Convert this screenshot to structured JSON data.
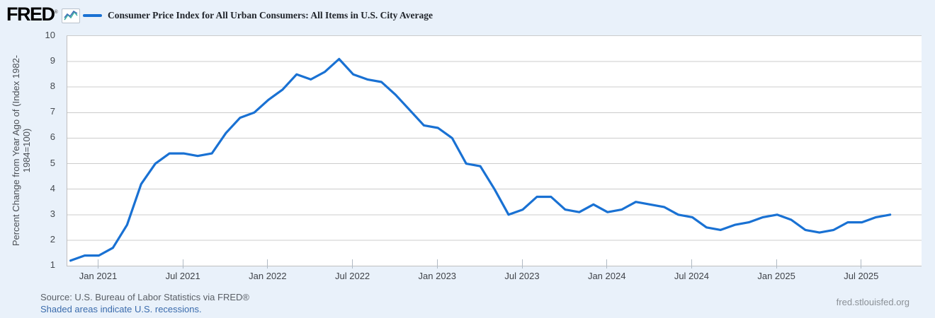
{
  "header": {
    "logo_text": "FRED",
    "registered_mark": "®",
    "series_title": "Consumer Price Index for All Urban Consumers: All Items in U.S. City Average"
  },
  "colors": {
    "series_line": "#1971d3",
    "background": "#e9f1fa",
    "plot_background": "#ffffff",
    "gridline": "#cccccc",
    "axis_line": "#bfbfbf",
    "link_blue": "#3a6bac",
    "icon_blue": "#4273b8",
    "icon_teal": "#3eb1a1"
  },
  "y_axis": {
    "title_line1": "Percent Change from Year Ago of (Index 1982-",
    "title_line2": "1984=100)",
    "tick_labels": [
      "1",
      "2",
      "3",
      "4",
      "5",
      "6",
      "7",
      "8",
      "9",
      "10"
    ]
  },
  "x_axis": {
    "tick_labels": [
      "Jan 2021",
      "Jul 2021",
      "Jan 2022",
      "Jul 2022",
      "Jan 2023",
      "Jul 2023",
      "Jan 2024",
      "Jul 2024",
      "Jan 2025",
      "Jul 2025"
    ]
  },
  "footer": {
    "source": "Source: U.S. Bureau of Labor Statistics via FRED®",
    "recession_note": "Shaded areas indicate U.S. recessions.",
    "site": "fred.stlouisfed.org"
  },
  "chart_data": {
    "type": "line",
    "title": "Consumer Price Index for All Urban Consumers: All Items in U.S. City Average",
    "ylabel": "Percent Change from Year Ago of (Index 1982-1984=100)",
    "xlabel": "",
    "ylim": [
      1,
      10
    ],
    "grid": "horizontal",
    "legend_position": "top",
    "frequency": "monthly",
    "x": [
      "2020-11",
      "2020-12",
      "2021-01",
      "2021-02",
      "2021-03",
      "2021-04",
      "2021-05",
      "2021-06",
      "2021-07",
      "2021-08",
      "2021-09",
      "2021-10",
      "2021-11",
      "2021-12",
      "2022-01",
      "2022-02",
      "2022-03",
      "2022-04",
      "2022-05",
      "2022-06",
      "2022-07",
      "2022-08",
      "2022-09",
      "2022-10",
      "2022-11",
      "2022-12",
      "2023-01",
      "2023-02",
      "2023-03",
      "2023-04",
      "2023-05",
      "2023-06",
      "2023-07",
      "2023-08",
      "2023-09",
      "2023-10",
      "2023-11",
      "2023-12",
      "2024-01",
      "2024-02",
      "2024-03",
      "2024-04",
      "2024-05",
      "2024-06",
      "2024-07",
      "2024-08",
      "2024-09",
      "2024-10",
      "2024-11",
      "2024-12",
      "2025-01",
      "2025-02",
      "2025-03",
      "2025-04",
      "2025-05",
      "2025-06",
      "2025-07",
      "2025-08",
      "2025-09"
    ],
    "series": [
      {
        "name": "Consumer Price Index for All Urban Consumers: All Items in U.S. City Average",
        "values": [
          1.2,
          1.4,
          1.4,
          1.7,
          2.6,
          4.2,
          5.0,
          5.4,
          5.4,
          5.3,
          5.4,
          6.2,
          6.8,
          7.0,
          7.5,
          7.9,
          8.5,
          8.3,
          8.6,
          9.1,
          8.5,
          8.3,
          8.2,
          7.7,
          7.1,
          6.5,
          6.4,
          6.0,
          5.0,
          4.9,
          4.0,
          3.0,
          3.2,
          3.7,
          3.7,
          3.2,
          3.1,
          3.4,
          3.1,
          3.2,
          3.5,
          3.4,
          3.3,
          3.0,
          2.9,
          2.5,
          2.4,
          2.6,
          2.7,
          2.9,
          3.0,
          2.8,
          2.4,
          2.3,
          2.4,
          2.7,
          2.7,
          2.9,
          3.0
        ]
      }
    ],
    "x_tick_indices": [
      2,
      8,
      14,
      20,
      26,
      32,
      38,
      44,
      50,
      56
    ],
    "x_tick_labels": [
      "Jan 2021",
      "Jul 2021",
      "Jan 2022",
      "Jul 2022",
      "Jan 2023",
      "Jul 2023",
      "Jan 2024",
      "Jul 2024",
      "Jan 2025",
      "Jul 2025"
    ],
    "y_ticks": [
      1,
      2,
      3,
      4,
      5,
      6,
      7,
      8,
      9,
      10
    ]
  }
}
